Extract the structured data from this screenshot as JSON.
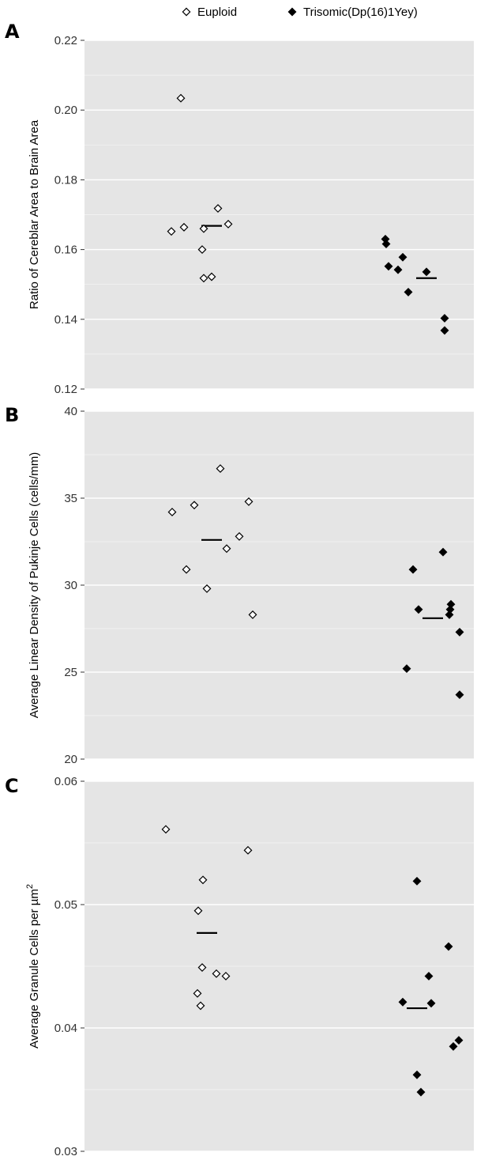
{
  "legend": {
    "items": [
      {
        "label": "Euploid",
        "marker": "open-diamond"
      },
      {
        "label": "Trisomic(Dp(16)1Yey)",
        "marker": "filled-diamond"
      }
    ]
  },
  "colors": {
    "panel_background": "#e5e5e5",
    "grid_line": "#ffffff",
    "marker_stroke": "#000000",
    "marker_fill_trisomic": "#000000",
    "marker_fill_euploid": "#ffffff",
    "mean_line": "#000000"
  },
  "chart_data": [
    {
      "type": "scatter",
      "panel_label": "A",
      "ylabel": "Ratio of Cereblar Area to Brain Area",
      "ylim": [
        0.12,
        0.22
      ],
      "yticks": [
        "0.12",
        "0.14",
        "0.16",
        "0.18",
        "0.20",
        "0.22"
      ],
      "tick_values": [
        0.12,
        0.14,
        0.16,
        0.18,
        0.2,
        0.22
      ],
      "grid": true,
      "legend_position": "top",
      "series": [
        {
          "name": "Euploid",
          "mean": 0.1668,
          "values": [
            0.2034,
            0.1652,
            0.1664,
            0.166,
            0.16,
            0.1518,
            0.1522,
            0.1718,
            0.1673
          ]
        },
        {
          "name": "Trisomic(Dp(16)1Yey)",
          "mean": 0.1518,
          "values": [
            0.163,
            0.1616,
            0.1552,
            0.1542,
            0.1578,
            0.1478,
            0.1536,
            0.1368,
            0.1403
          ]
        }
      ]
    },
    {
      "type": "scatter",
      "panel_label": "B",
      "ylabel": "Average Linear Density of Pukinje Cells (cells/mm)",
      "ylim": [
        20,
        40
      ],
      "yticks": [
        "20",
        "25",
        "30",
        "35",
        "40"
      ],
      "tick_values": [
        20,
        25,
        30,
        35,
        40
      ],
      "grid": true,
      "series": [
        {
          "name": "Euploid",
          "mean": 32.6,
          "values": [
            34.2,
            30.9,
            34.6,
            29.8,
            36.7,
            32.1,
            32.8,
            34.8,
            28.3
          ]
        },
        {
          "name": "Trisomic(Dp(16)1Yey)",
          "mean": 28.1,
          "values": [
            25.2,
            30.9,
            28.6,
            31.9,
            28.9,
            28.6,
            28.3,
            27.3,
            23.7
          ]
        }
      ]
    },
    {
      "type": "scatter",
      "panel_label": "C",
      "ylabel": "Average Granule Cells per µm",
      "ylabel_superscript": "2",
      "ylim": [
        0.03,
        0.06
      ],
      "yticks": [
        "0.03",
        "0.04",
        "0.05",
        "0.06"
      ],
      "tick_values": [
        0.03,
        0.04,
        0.05,
        0.06
      ],
      "grid": true,
      "series": [
        {
          "name": "Euploid",
          "mean": 0.0477,
          "values": [
            0.0561,
            0.052,
            0.0495,
            0.0449,
            0.0428,
            0.0418,
            0.0444,
            0.0442,
            0.0544
          ]
        },
        {
          "name": "Trisomic(Dp(16)1Yey)",
          "mean": 0.0416,
          "values": [
            0.0421,
            0.0519,
            0.0362,
            0.0348,
            0.0442,
            0.042,
            0.0466,
            0.0385,
            0.039
          ]
        }
      ]
    }
  ]
}
